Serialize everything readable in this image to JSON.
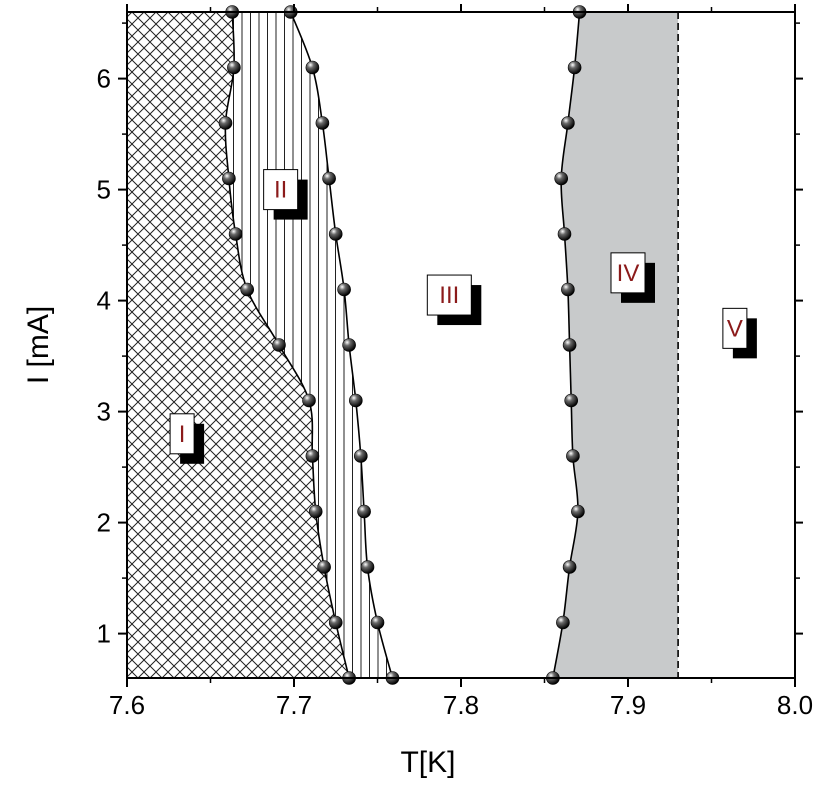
{
  "chart_data": {
    "type": "scatter",
    "title": "",
    "xlabel": "T[K]",
    "ylabel": "I [mA]",
    "xlim": [
      7.6,
      8.0
    ],
    "ylim": [
      0.6,
      6.6
    ],
    "x_ticks": [
      7.6,
      7.7,
      7.8,
      7.9,
      8.0
    ],
    "x_tick_labels": [
      "7.6",
      "7.7",
      "7.8",
      "7.9",
      "8.0"
    ],
    "y_ticks": [
      1,
      2,
      3,
      4,
      5,
      6
    ],
    "y_tick_labels": [
      "1",
      "2",
      "3",
      "4",
      "5",
      "6"
    ],
    "grid": false,
    "series": [
      {
        "x": [
          7.733,
          7.725,
          7.718,
          7.713,
          7.711,
          7.709,
          7.691,
          7.672,
          7.665,
          7.661,
          7.659,
          7.664,
          7.663
        ],
        "y": [
          0.6,
          1.1,
          1.6,
          2.1,
          2.6,
          3.1,
          3.6,
          4.1,
          4.6,
          5.1,
          5.6,
          6.1,
          6.6
        ]
      },
      {
        "x": [
          7.759,
          7.75,
          7.744,
          7.742,
          7.74,
          7.737,
          7.733,
          7.73,
          7.725,
          7.721,
          7.717,
          7.711,
          7.698
        ],
        "y": [
          0.6,
          1.1,
          1.6,
          2.1,
          2.6,
          3.1,
          3.6,
          4.1,
          4.6,
          5.1,
          5.6,
          6.1,
          6.6
        ]
      },
      {
        "x": [
          7.855,
          7.861,
          7.865,
          7.87,
          7.867,
          7.866,
          7.865,
          7.864,
          7.862,
          7.86,
          7.864,
          7.868,
          7.871
        ],
        "y": [
          0.6,
          1.1,
          1.6,
          2.1,
          2.6,
          3.1,
          3.6,
          4.1,
          4.6,
          5.1,
          5.6,
          6.1,
          6.6
        ]
      }
    ],
    "vertical_lines": [
      7.93
    ],
    "regions": [
      {
        "label": "I",
        "x": 7.633,
        "y": 2.8
      },
      {
        "label": "II",
        "x": 7.692,
        "y": 5.0
      },
      {
        "label": "III",
        "x": 7.793,
        "y": 4.05
      },
      {
        "label": "IV",
        "x": 7.9,
        "y": 4.25
      },
      {
        "label": "V",
        "x": 7.964,
        "y": 3.75
      }
    ]
  }
}
